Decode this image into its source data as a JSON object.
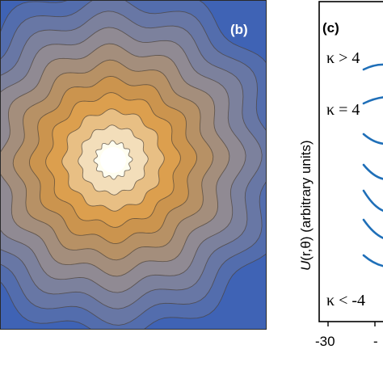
{
  "panel_b": {
    "label": "(b)",
    "colors": {
      "outer": "#3f63b5",
      "mid_grey": "#8d8a96",
      "warm": "#d9963e",
      "center": "#fffef0",
      "contour_line": "#4a4036"
    },
    "contour_levels": 11,
    "ripple_lobes": 12
  },
  "panel_c": {
    "label": "(c)",
    "ylabel_part1": "U",
    "ylabel_part2": "(r,θ) (arbitrary units)",
    "annotations": {
      "k_gt": "κ > 4",
      "k_eq": "κ = 4",
      "k_lt": "κ < -4"
    },
    "x_ticks": [
      "-30",
      "-"
    ],
    "curve_color": "#1f6fb8",
    "curve_count": 7
  }
}
